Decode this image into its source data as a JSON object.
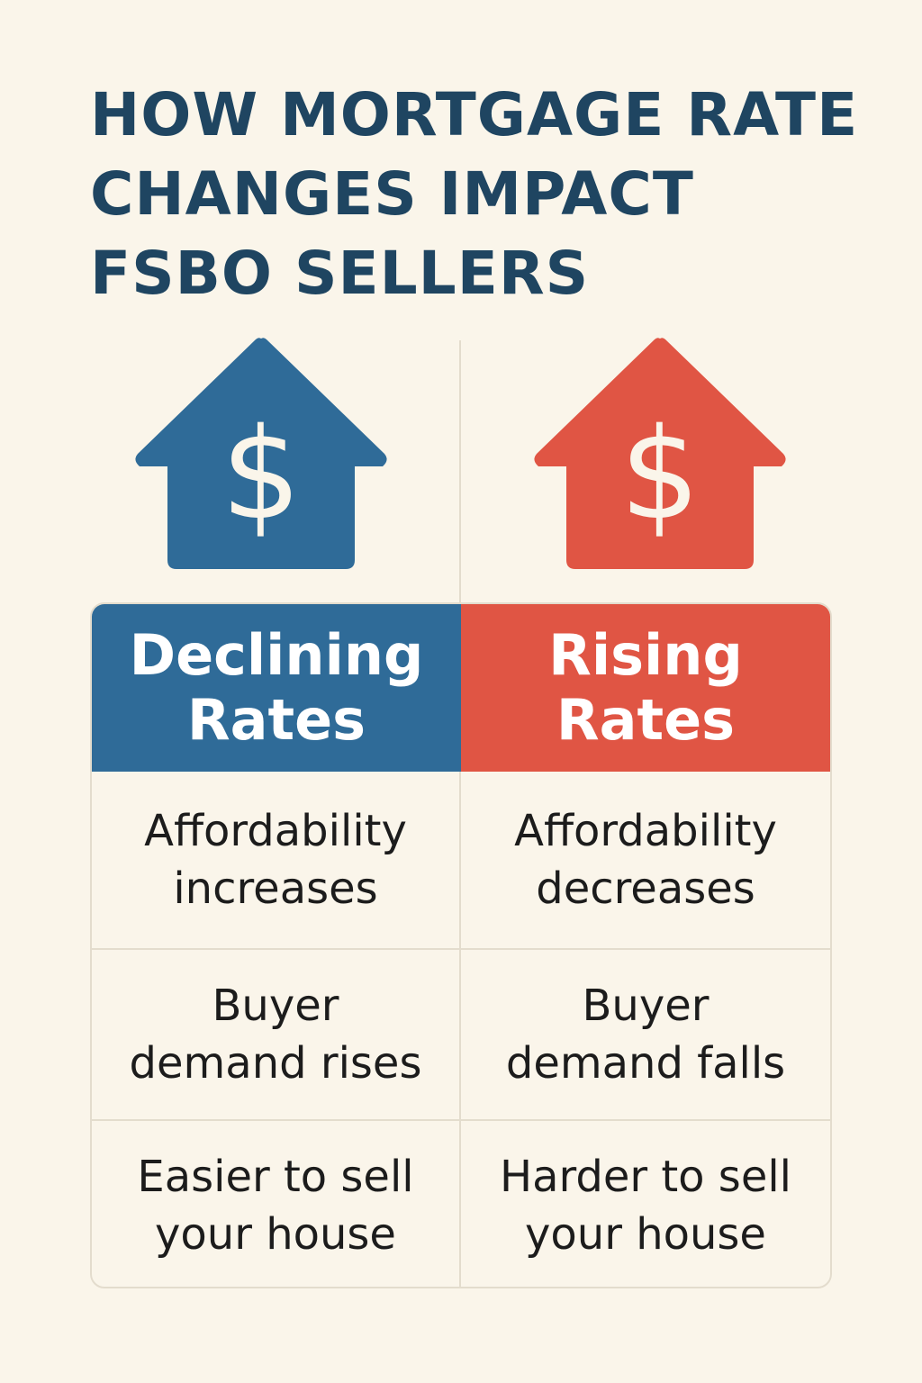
{
  "title": {
    "line1": "HOW MORTGAGE RATE",
    "line2": "CHANGES IMPACT",
    "line3": "FSBO SELLERS"
  },
  "icons": {
    "left": "house-dollar-icon",
    "right": "house-dollar-icon",
    "dollar_symbol": "$"
  },
  "colors": {
    "background": "#faf5ea",
    "title": "#1f4561",
    "declining": "#2f6b98",
    "rising": "#e05544",
    "border": "#e3dccd",
    "text": "#1c1c1c"
  },
  "columns": [
    {
      "header_line1": "Declining",
      "header_line2": "Rates",
      "rows": [
        {
          "line1": "Affordability",
          "line2": "increases"
        },
        {
          "line1": "Buyer",
          "line2": "demand rises"
        },
        {
          "line1": "Easier to sell",
          "line2": "your house"
        }
      ]
    },
    {
      "header_line1": "Rising",
      "header_line2": "Rates",
      "rows": [
        {
          "line1": "Affordability",
          "line2": "decreases"
        },
        {
          "line1": "Buyer",
          "line2": "demand falls"
        },
        {
          "line1": "Harder to sell",
          "line2": "your house"
        }
      ]
    }
  ]
}
